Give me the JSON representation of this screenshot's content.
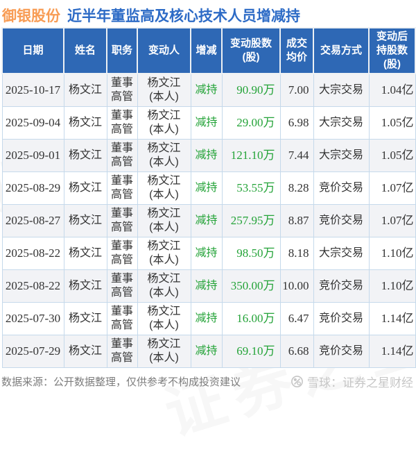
{
  "colors": {
    "accentOrange": "#F89C54",
    "accentBlue": "#2D6BC6",
    "headerBg": "#2E68B5",
    "green": "#24A338",
    "rowAlt": "#F2F3F6",
    "gridBorder": "#C5D9EB"
  },
  "header": {
    "stock": "御银股份",
    "subtitle": "近半年董监高及核心技术人员增减持"
  },
  "chart_data": {
    "type": "table",
    "title": "御银股份 近半年董监高及核心技术人员增减持",
    "columns": [
      "日期",
      "姓名",
      "职务",
      "变动人",
      "增减",
      "变动股数\n(股)",
      "成交\n均价",
      "交易方式",
      "变动后\n持股数\n(股)"
    ],
    "rows": [
      {
        "date": "2025-10-17",
        "name": "杨文江",
        "position": "董事\n高管",
        "person": "杨文江\n(本人)",
        "action": "减持",
        "shares": "90.90万",
        "price": "7.00",
        "method": "大宗交易",
        "after": "1.04亿"
      },
      {
        "date": "2025-09-04",
        "name": "杨文江",
        "position": "董事\n高管",
        "person": "杨文江\n(本人)",
        "action": "减持",
        "shares": "29.00万",
        "price": "6.98",
        "method": "大宗交易",
        "after": "1.05亿"
      },
      {
        "date": "2025-09-01",
        "name": "杨文江",
        "position": "董事\n高管",
        "person": "杨文江\n(本人)",
        "action": "减持",
        "shares": "121.10万",
        "price": "7.44",
        "method": "大宗交易",
        "after": "1.05亿"
      },
      {
        "date": "2025-08-29",
        "name": "杨文江",
        "position": "董事\n高管",
        "person": "杨文江\n(本人)",
        "action": "减持",
        "shares": "53.55万",
        "price": "8.28",
        "method": "竞价交易",
        "after": "1.07亿"
      },
      {
        "date": "2025-08-27",
        "name": "杨文江",
        "position": "董事\n高管",
        "person": "杨文江\n(本人)",
        "action": "减持",
        "shares": "257.95万",
        "price": "8.87",
        "method": "竞价交易",
        "after": "1.07亿"
      },
      {
        "date": "2025-08-22",
        "name": "杨文江",
        "position": "董事\n高管",
        "person": "杨文江\n(本人)",
        "action": "减持",
        "shares": "98.50万",
        "price": "8.18",
        "method": "大宗交易",
        "after": "1.10亿"
      },
      {
        "date": "2025-08-22",
        "name": "杨文江",
        "position": "董事\n高管",
        "person": "杨文江\n(本人)",
        "action": "减持",
        "shares": "350.00万",
        "price": "10.00",
        "method": "竞价交易",
        "after": "1.10亿"
      },
      {
        "date": "2025-07-30",
        "name": "杨文江",
        "position": "董事\n高管",
        "person": "杨文江\n(本人)",
        "action": "减持",
        "shares": "16.00万",
        "price": "6.47",
        "method": "竞价交易",
        "after": "1.14亿"
      },
      {
        "date": "2025-07-29",
        "name": "杨文江",
        "position": "董事\n高管",
        "person": "杨文江\n(本人)",
        "action": "减持",
        "shares": "69.10万",
        "price": "6.68",
        "method": "竞价交易",
        "after": "1.14亿"
      }
    ]
  },
  "footer": {
    "source": "数据来源：公开数据整理，仅供参考不构成投资建议",
    "brand": "雪球：证券之星财经"
  },
  "watermark": {
    "text": "证券之星"
  }
}
